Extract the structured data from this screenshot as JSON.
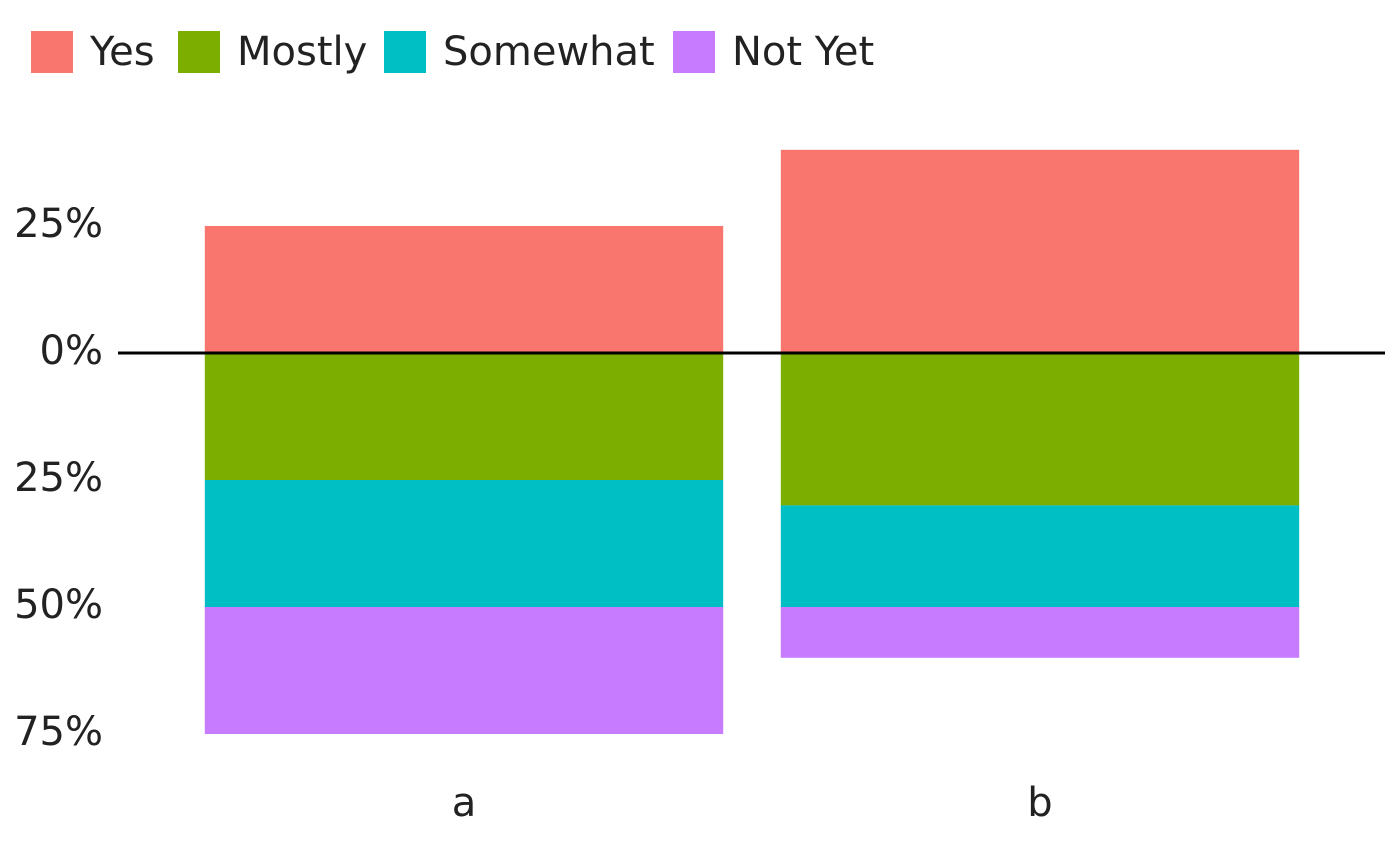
{
  "chart_data": {
    "type": "diverging-bar",
    "categories": [
      "a",
      "b"
    ],
    "series": [
      {
        "name": "Yes",
        "color": "#F8766D",
        "values": [
          25,
          40
        ]
      },
      {
        "name": "Mostly",
        "color": "#7CAE00",
        "values": [
          -25,
          -30
        ]
      },
      {
        "name": "Somewhat",
        "color": "#00BFC4",
        "values": [
          -25,
          -20
        ]
      },
      {
        "name": "Not Yet",
        "color": "#C77CFF",
        "values": [
          -25,
          -10
        ]
      }
    ],
    "ylim": [
      -80,
      45
    ],
    "yticks": [
      {
        "value": 25,
        "label": "25%"
      },
      {
        "value": 0,
        "label": "0%"
      },
      {
        "value": -25,
        "label": "25%"
      },
      {
        "value": -50,
        "label": "50%"
      },
      {
        "value": -75,
        "label": "75%"
      }
    ],
    "grid": false,
    "legend": "top"
  }
}
